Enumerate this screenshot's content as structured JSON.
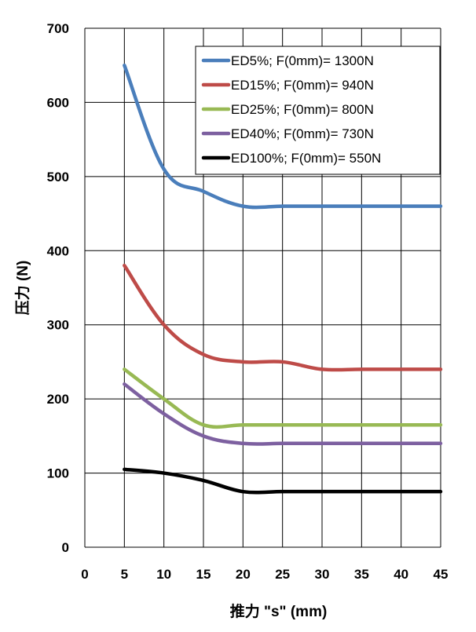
{
  "chart_data": {
    "type": "line",
    "xlabel": "推力 \"s\" (mm)",
    "ylabel": "压力 (N)",
    "xlim": [
      0,
      45
    ],
    "ylim": [
      0,
      700
    ],
    "x_ticks": [
      0,
      5,
      10,
      15,
      20,
      25,
      30,
      35,
      40,
      45
    ],
    "y_ticks": [
      0,
      100,
      200,
      300,
      400,
      500,
      600,
      700
    ],
    "grid": true,
    "legend_position": "top-right",
    "x": [
      5,
      10,
      15,
      20,
      25,
      30,
      35,
      40,
      45
    ],
    "series": [
      {
        "name": "ED5%; F(0mm)= 1300N",
        "color": "#4a7ebb",
        "values": [
          650,
          510,
          480,
          460,
          460,
          460,
          460,
          460,
          460
        ]
      },
      {
        "name": "ED15%; F(0mm)= 940N",
        "color": "#be4b48",
        "values": [
          380,
          300,
          260,
          250,
          250,
          240,
          240,
          240,
          240
        ]
      },
      {
        "name": "ED25%; F(0mm)= 800N",
        "color": "#98b954",
        "values": [
          240,
          200,
          165,
          165,
          165,
          165,
          165,
          165,
          165
        ]
      },
      {
        "name": "ED40%; F(0mm)= 730N",
        "color": "#7d60a0",
        "values": [
          220,
          180,
          150,
          140,
          140,
          140,
          140,
          140,
          140
        ]
      },
      {
        "name": "ED100%; F(0mm)= 550N",
        "color": "#000000",
        "values": [
          105,
          100,
          90,
          75,
          75,
          75,
          75,
          75,
          75
        ]
      }
    ]
  }
}
